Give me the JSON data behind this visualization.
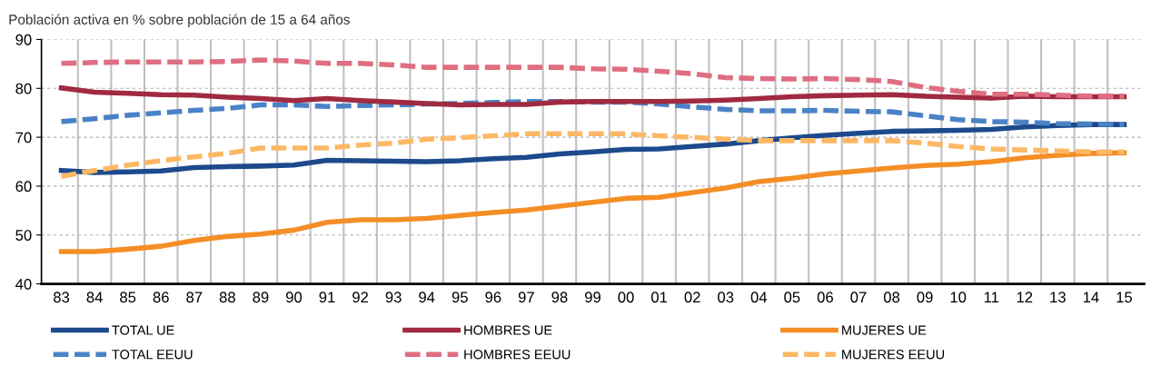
{
  "chart_data": {
    "type": "line",
    "title": "Población activa en % sobre población de 15 a 64 años",
    "categories": [
      "83",
      "84",
      "85",
      "86",
      "87",
      "88",
      "89",
      "90",
      "91",
      "92",
      "93",
      "94",
      "95",
      "96",
      "97",
      "98",
      "99",
      "00",
      "01",
      "02",
      "03",
      "04",
      "05",
      "06",
      "07",
      "08",
      "09",
      "10",
      "11",
      "12",
      "13",
      "14",
      "15"
    ],
    "series": [
      {
        "name": "TOTAL UE",
        "color": "#1c4a8c",
        "line_style": "solid",
        "values": [
          63.2,
          62.8,
          62.9,
          63.1,
          63.8,
          64.0,
          64.1,
          64.3,
          65.3,
          65.2,
          65.1,
          65.0,
          65.2,
          65.6,
          65.9,
          66.6,
          67.0,
          67.5,
          67.6,
          68.1,
          68.6,
          69.3,
          69.9,
          70.4,
          70.8,
          71.2,
          71.3,
          71.4,
          71.6,
          72.1,
          72.4,
          72.6,
          72.6
        ]
      },
      {
        "name": "TOTAL EEUU",
        "color": "#4a82c6",
        "line_style": "dashed",
        "values": [
          73.2,
          73.8,
          74.5,
          75.0,
          75.5,
          75.9,
          76.6,
          76.6,
          76.3,
          76.5,
          76.6,
          76.8,
          76.9,
          77.1,
          77.3,
          77.3,
          77.2,
          77.2,
          76.8,
          76.2,
          75.7,
          75.4,
          75.4,
          75.5,
          75.3,
          75.2,
          74.4,
          73.6,
          73.2,
          73.1,
          72.8,
          72.7,
          72.6
        ]
      },
      {
        "name": "HOMBRES UE",
        "color": "#a02a40",
        "line_style": "solid",
        "values": [
          80.1,
          79.2,
          79.0,
          78.7,
          78.6,
          78.2,
          77.9,
          77.5,
          77.9,
          77.5,
          77.2,
          76.9,
          76.6,
          76.7,
          76.7,
          77.2,
          77.3,
          77.3,
          77.3,
          77.4,
          77.6,
          77.9,
          78.3,
          78.5,
          78.6,
          78.7,
          78.4,
          78.2,
          78.0,
          78.4,
          78.3,
          78.3,
          78.3
        ]
      },
      {
        "name": "HOMBRES EEUU",
        "color": "#de6e80",
        "line_style": "dashed",
        "values": [
          85.1,
          85.3,
          85.4,
          85.4,
          85.4,
          85.5,
          85.8,
          85.6,
          85.1,
          85.1,
          84.8,
          84.3,
          84.3,
          84.3,
          84.3,
          84.3,
          84.0,
          83.9,
          83.5,
          83.0,
          82.2,
          82.0,
          81.9,
          82.0,
          81.8,
          81.4,
          80.2,
          79.4,
          78.8,
          78.8,
          78.6,
          78.4,
          78.4
        ]
      },
      {
        "name": "MUJERES UE",
        "color": "#f58e26",
        "line_style": "solid",
        "values": [
          46.6,
          46.6,
          47.1,
          47.7,
          48.9,
          49.7,
          50.2,
          51.0,
          52.6,
          53.1,
          53.1,
          53.4,
          54.0,
          54.6,
          55.1,
          55.9,
          56.7,
          57.5,
          57.7,
          58.7,
          59.6,
          60.9,
          61.6,
          62.5,
          63.1,
          63.7,
          64.2,
          64.5,
          65.0,
          65.8,
          66.3,
          66.7,
          66.8
        ]
      },
      {
        "name": "MUJERES EEUU",
        "color": "#fdb865",
        "line_style": "dashed",
        "values": [
          62.0,
          63.2,
          64.3,
          65.2,
          66.0,
          66.7,
          67.8,
          67.8,
          67.8,
          68.4,
          68.8,
          69.6,
          69.9,
          70.3,
          70.7,
          70.7,
          70.7,
          70.7,
          70.3,
          70.0,
          69.6,
          69.3,
          69.3,
          69.3,
          69.3,
          69.3,
          68.8,
          68.1,
          67.6,
          67.4,
          67.2,
          67.0,
          67.0
        ]
      }
    ],
    "ylim": [
      40,
      90
    ],
    "yticks": [
      40,
      50,
      60,
      70,
      80,
      90
    ],
    "grid": true,
    "legend": "bottom"
  }
}
